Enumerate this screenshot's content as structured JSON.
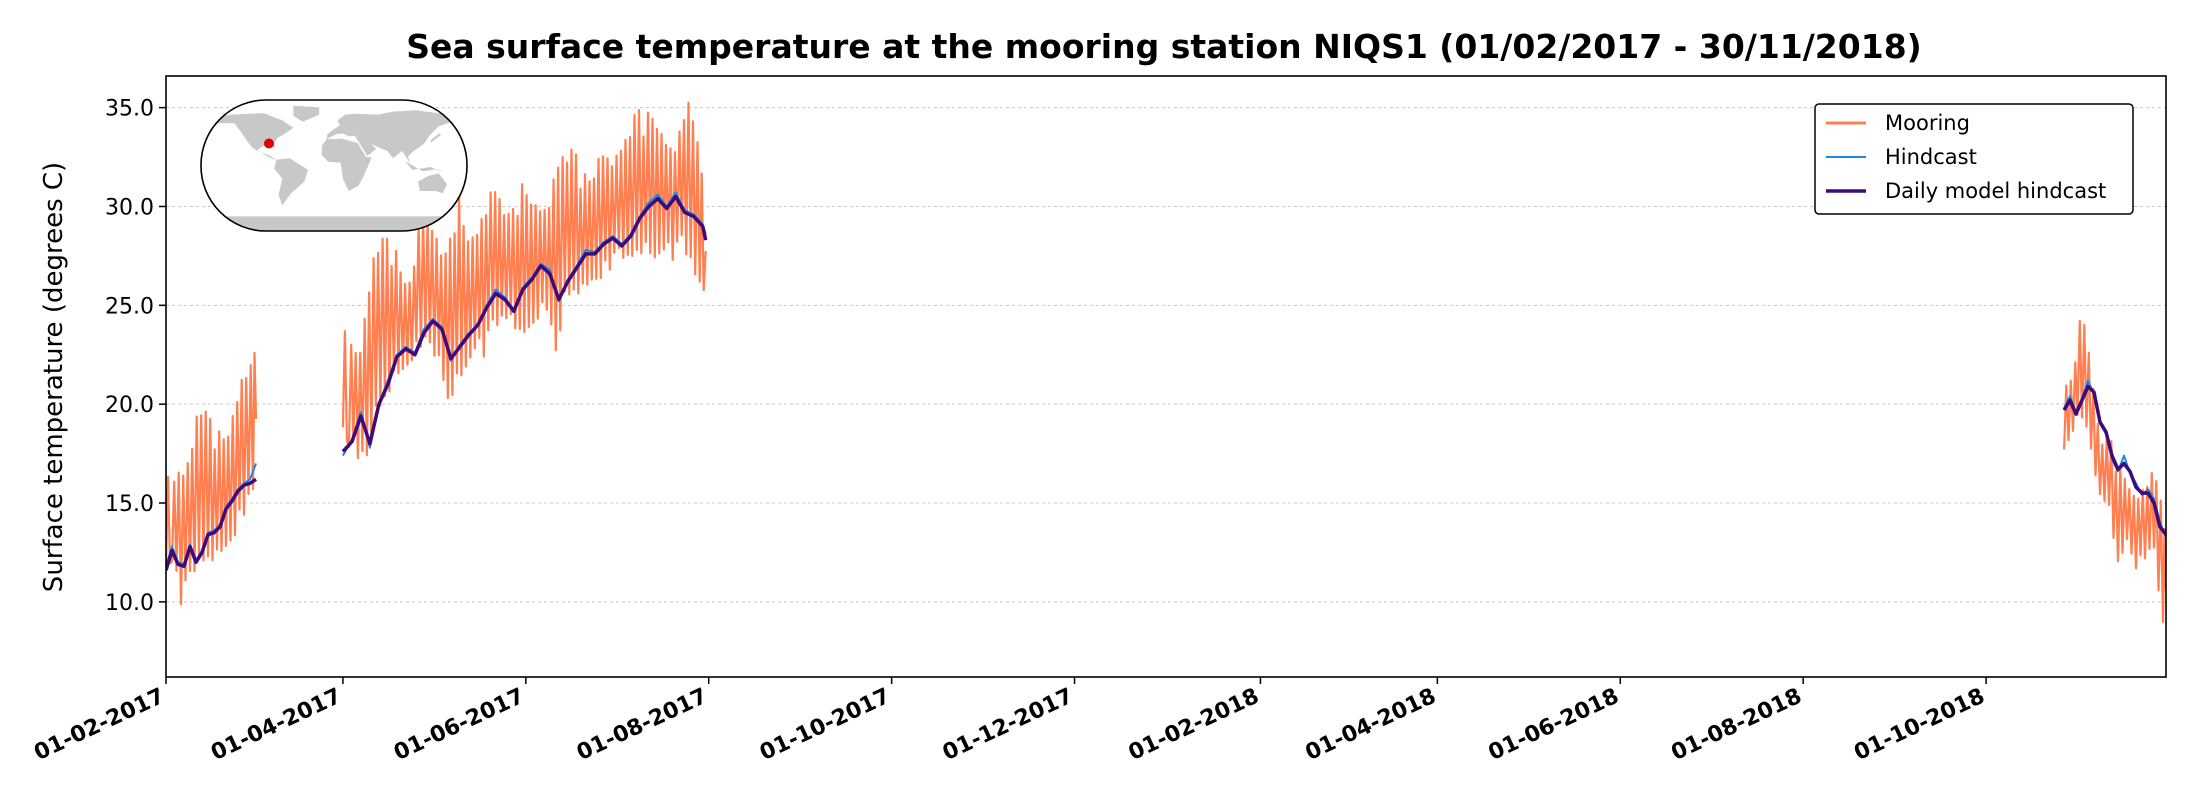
{
  "chart_data": {
    "type": "line",
    "title": "Sea surface temperature at the mooring station NIQS1 (01/02/2017 - 30/11/2018)",
    "ylabel": "Surface temperature (degrees C)",
    "xlabel": "",
    "xlim": [
      "2017-02-01",
      "2018-11-30"
    ],
    "ylim": [
      6.2,
      36.6
    ],
    "yticks": [
      10.0,
      15.0,
      20.0,
      25.0,
      30.0,
      35.0
    ],
    "ytick_labels": [
      "10.0",
      "15.0",
      "20.0",
      "25.0",
      "30.0",
      "35.0"
    ],
    "xticks": [
      "2017-02-01",
      "2017-04-01",
      "2017-06-01",
      "2017-08-01",
      "2017-10-01",
      "2017-12-01",
      "2018-02-01",
      "2018-04-01",
      "2018-06-01",
      "2018-08-01",
      "2018-10-01"
    ],
    "xtick_labels": [
      "01-02-2017",
      "01-04-2017",
      "01-06-2017",
      "01-08-2017",
      "01-10-2017",
      "01-12-2017",
      "01-02-2018",
      "01-04-2018",
      "01-06-2018",
      "01-08-2018",
      "01-10-2018"
    ],
    "grid": "horizontal dotted",
    "legend_position": "top-right",
    "series": [
      {
        "name": "Mooring",
        "color": "#ff7f50",
        "segments": [
          {
            "x": [
              "2017-02-01",
              "2017-02-03",
              "2017-02-06",
              "2017-02-09",
              "2017-02-12",
              "2017-02-15",
              "2017-02-18",
              "2017-02-21",
              "2017-02-24",
              "2017-02-27",
              "2017-03-02",
              "2017-03-03"
            ],
            "y_min": [
              11.5,
              11.8,
              9.5,
              10.5,
              11.0,
              11.5,
              12.0,
              12.5,
              13.0,
              14.0,
              14.5,
              15.0
            ],
            "y_max": [
              17.5,
              16.5,
              17.0,
              17.5,
              20.0,
              19.5,
              18.5,
              19.0,
              20.5,
              22.0,
              22.5,
              23.5
            ]
          },
          {
            "x": [
              "2017-04-01",
              "2017-04-03",
              "2017-04-06",
              "2017-04-09",
              "2017-04-12",
              "2017-04-15",
              "2017-04-18",
              "2017-04-21",
              "2017-04-24",
              "2017-04-27",
              "2017-04-30",
              "2017-05-03",
              "2017-05-06",
              "2017-05-09",
              "2017-05-12",
              "2017-05-15",
              "2017-05-18",
              "2017-05-21",
              "2017-05-24",
              "2017-05-27",
              "2017-05-30",
              "2017-06-02",
              "2017-06-05",
              "2017-06-08",
              "2017-06-11",
              "2017-06-14",
              "2017-06-17",
              "2017-06-20",
              "2017-06-23",
              "2017-06-26",
              "2017-06-29",
              "2017-07-02",
              "2017-07-05",
              "2017-07-08",
              "2017-07-11",
              "2017-07-14",
              "2017-07-17",
              "2017-07-20",
              "2017-07-23",
              "2017-07-26",
              "2017-07-29",
              "2017-07-31"
            ],
            "y_min": [
              18.5,
              17.5,
              17.0,
              16.0,
              18.5,
              19.5,
              21.0,
              21.5,
              22.0,
              22.5,
              22.0,
              21.5,
              19.5,
              20.5,
              21.5,
              22.5,
              22.0,
              23.0,
              23.5,
              24.0,
              23.0,
              23.5,
              24.0,
              24.5,
              21.0,
              24.5,
              25.0,
              25.5,
              26.0,
              26.0,
              26.5,
              27.0,
              26.5,
              27.0,
              27.5,
              27.0,
              27.5,
              27.0,
              27.5,
              26.0,
              25.5,
              25.5
            ],
            "y_max": [
              25.0,
              24.0,
              22.5,
              25.5,
              28.0,
              28.5,
              28.0,
              27.0,
              26.5,
              30.5,
              29.5,
              28.0,
              27.5,
              31.0,
              29.5,
              29.0,
              30.0,
              31.5,
              30.0,
              29.5,
              31.0,
              31.5,
              30.5,
              30.0,
              32.5,
              32.5,
              33.0,
              31.5,
              32.0,
              33.5,
              32.5,
              33.0,
              33.5,
              35.0,
              34.5,
              35.5,
              34.0,
              33.0,
              34.5,
              35.5,
              32.5,
              30.0
            ]
          },
          {
            "x": [
              "2018-10-27",
              "2018-10-30",
              "2018-11-02",
              "2018-11-05",
              "2018-11-08",
              "2018-11-11",
              "2018-11-14",
              "2018-11-17",
              "2018-11-20",
              "2018-11-23",
              "2018-11-26",
              "2018-11-29",
              "2018-11-30"
            ],
            "y_min": [
              17.5,
              18.5,
              19.0,
              17.0,
              15.0,
              14.5,
              11.5,
              13.0,
              11.5,
              12.0,
              12.0,
              8.0,
              7.5
            ],
            "y_max": [
              21.5,
              21.5,
              25.5,
              22.0,
              18.0,
              18.5,
              17.0,
              16.5,
              15.5,
              16.0,
              17.0,
              14.5,
              13.5
            ]
          }
        ]
      },
      {
        "name": "Hindcast",
        "color": "#1e88e5",
        "segments": [
          {
            "x": [
              "2017-02-01",
              "2017-02-03",
              "2017-02-05",
              "2017-02-07",
              "2017-02-09",
              "2017-02-11",
              "2017-02-13",
              "2017-02-15",
              "2017-02-17",
              "2017-02-19",
              "2017-02-21",
              "2017-02-23",
              "2017-02-25",
              "2017-02-27",
              "2017-03-01",
              "2017-03-03"
            ],
            "y": [
              11.8,
              12.8,
              12.0,
              11.9,
              12.9,
              12.1,
              12.6,
              13.5,
              13.6,
              13.9,
              14.8,
              15.2,
              15.7,
              16.0,
              16.2,
              17.0
            ]
          },
          {
            "x": [
              "2017-04-01",
              "2017-04-04",
              "2017-04-07",
              "2017-04-10",
              "2017-04-13",
              "2017-04-16",
              "2017-04-19",
              "2017-04-22",
              "2017-04-25",
              "2017-04-28",
              "2017-05-01",
              "2017-05-04",
              "2017-05-07",
              "2017-05-10",
              "2017-05-13",
              "2017-05-16",
              "2017-05-19",
              "2017-05-22",
              "2017-05-25",
              "2017-05-28",
              "2017-05-31",
              "2017-06-03",
              "2017-06-06",
              "2017-06-09",
              "2017-06-12",
              "2017-06-15",
              "2017-06-18",
              "2017-06-21",
              "2017-06-24",
              "2017-06-27",
              "2017-06-30",
              "2017-07-03",
              "2017-07-06",
              "2017-07-09",
              "2017-07-12",
              "2017-07-15",
              "2017-07-18",
              "2017-07-21",
              "2017-07-24",
              "2017-07-27",
              "2017-07-30",
              "2017-07-31"
            ],
            "y": [
              17.4,
              18.2,
              19.6,
              17.8,
              20.0,
              21.2,
              22.5,
              22.9,
              22.6,
              23.8,
              24.3,
              23.9,
              22.2,
              23.0,
              23.6,
              24.0,
              25.0,
              25.8,
              25.4,
              24.8,
              25.9,
              26.4,
              27.1,
              26.8,
              25.2,
              26.3,
              27.0,
              27.8,
              27.7,
              28.2,
              28.5,
              28.1,
              28.6,
              29.5,
              30.2,
              30.6,
              30.0,
              30.7,
              29.8,
              29.6,
              29.1,
              28.6
            ]
          },
          {
            "x": [
              "2018-10-27",
              "2018-10-29",
              "2018-10-31",
              "2018-11-02",
              "2018-11-04",
              "2018-11-06",
              "2018-11-08",
              "2018-11-10",
              "2018-11-12",
              "2018-11-14",
              "2018-11-16",
              "2018-11-18",
              "2018-11-20",
              "2018-11-22",
              "2018-11-24",
              "2018-11-26",
              "2018-11-28",
              "2018-11-30"
            ],
            "y": [
              19.8,
              20.4,
              19.6,
              20.3,
              21.2,
              20.5,
              19.0,
              18.5,
              17.2,
              16.6,
              17.4,
              16.5,
              16.0,
              15.4,
              15.7,
              15.2,
              14.0,
              13.3
            ]
          }
        ]
      },
      {
        "name": "Daily model hindcast",
        "color": "#3f0a7a",
        "segments": [
          {
            "x": [
              "2017-02-01",
              "2017-02-03",
              "2017-02-05",
              "2017-02-07",
              "2017-02-09",
              "2017-02-11",
              "2017-02-13",
              "2017-02-15",
              "2017-02-17",
              "2017-02-19",
              "2017-02-21",
              "2017-02-23",
              "2017-02-25",
              "2017-02-27",
              "2017-03-01",
              "2017-03-03"
            ],
            "y": [
              11.6,
              12.6,
              11.9,
              11.8,
              12.8,
              12.0,
              12.5,
              13.4,
              13.5,
              13.8,
              14.7,
              15.1,
              15.6,
              15.9,
              16.0,
              16.2
            ]
          },
          {
            "x": [
              "2017-04-01",
              "2017-04-04",
              "2017-04-07",
              "2017-04-10",
              "2017-04-13",
              "2017-04-16",
              "2017-04-19",
              "2017-04-22",
              "2017-04-25",
              "2017-04-28",
              "2017-05-01",
              "2017-05-04",
              "2017-05-07",
              "2017-05-10",
              "2017-05-13",
              "2017-05-16",
              "2017-05-19",
              "2017-05-22",
              "2017-05-25",
              "2017-05-28",
              "2017-05-31",
              "2017-06-03",
              "2017-06-06",
              "2017-06-09",
              "2017-06-12",
              "2017-06-15",
              "2017-06-18",
              "2017-06-21",
              "2017-06-24",
              "2017-06-27",
              "2017-06-30",
              "2017-07-03",
              "2017-07-06",
              "2017-07-09",
              "2017-07-12",
              "2017-07-15",
              "2017-07-18",
              "2017-07-21",
              "2017-07-24",
              "2017-07-27",
              "2017-07-30",
              "2017-07-31"
            ],
            "y": [
              17.6,
              18.1,
              19.4,
              18.0,
              20.0,
              21.0,
              22.4,
              22.8,
              22.5,
              23.6,
              24.2,
              23.8,
              22.3,
              22.9,
              23.5,
              24.0,
              24.9,
              25.6,
              25.3,
              24.7,
              25.8,
              26.3,
              27.0,
              26.6,
              25.3,
              26.2,
              26.9,
              27.6,
              27.6,
              28.1,
              28.4,
              28.0,
              28.5,
              29.4,
              30.0,
              30.4,
              29.9,
              30.5,
              29.7,
              29.5,
              29.0,
              28.3
            ]
          },
          {
            "x": [
              "2018-10-27",
              "2018-10-29",
              "2018-10-31",
              "2018-11-02",
              "2018-11-04",
              "2018-11-06",
              "2018-11-08",
              "2018-11-10",
              "2018-11-12",
              "2018-11-14",
              "2018-11-16",
              "2018-11-18",
              "2018-11-20",
              "2018-11-22",
              "2018-11-24",
              "2018-11-26",
              "2018-11-28",
              "2018-11-30"
            ],
            "y": [
              19.7,
              20.2,
              19.5,
              20.2,
              20.9,
              20.6,
              19.1,
              18.6,
              17.4,
              16.7,
              17.0,
              16.6,
              15.8,
              15.5,
              15.5,
              15.0,
              13.8,
              13.4
            ]
          }
        ]
      }
    ]
  },
  "inset_map": {
    "land_color": "#c8c8c8",
    "marker_color": "#e00000",
    "marker_lon": -88.0,
    "marker_lat": 30.2
  }
}
